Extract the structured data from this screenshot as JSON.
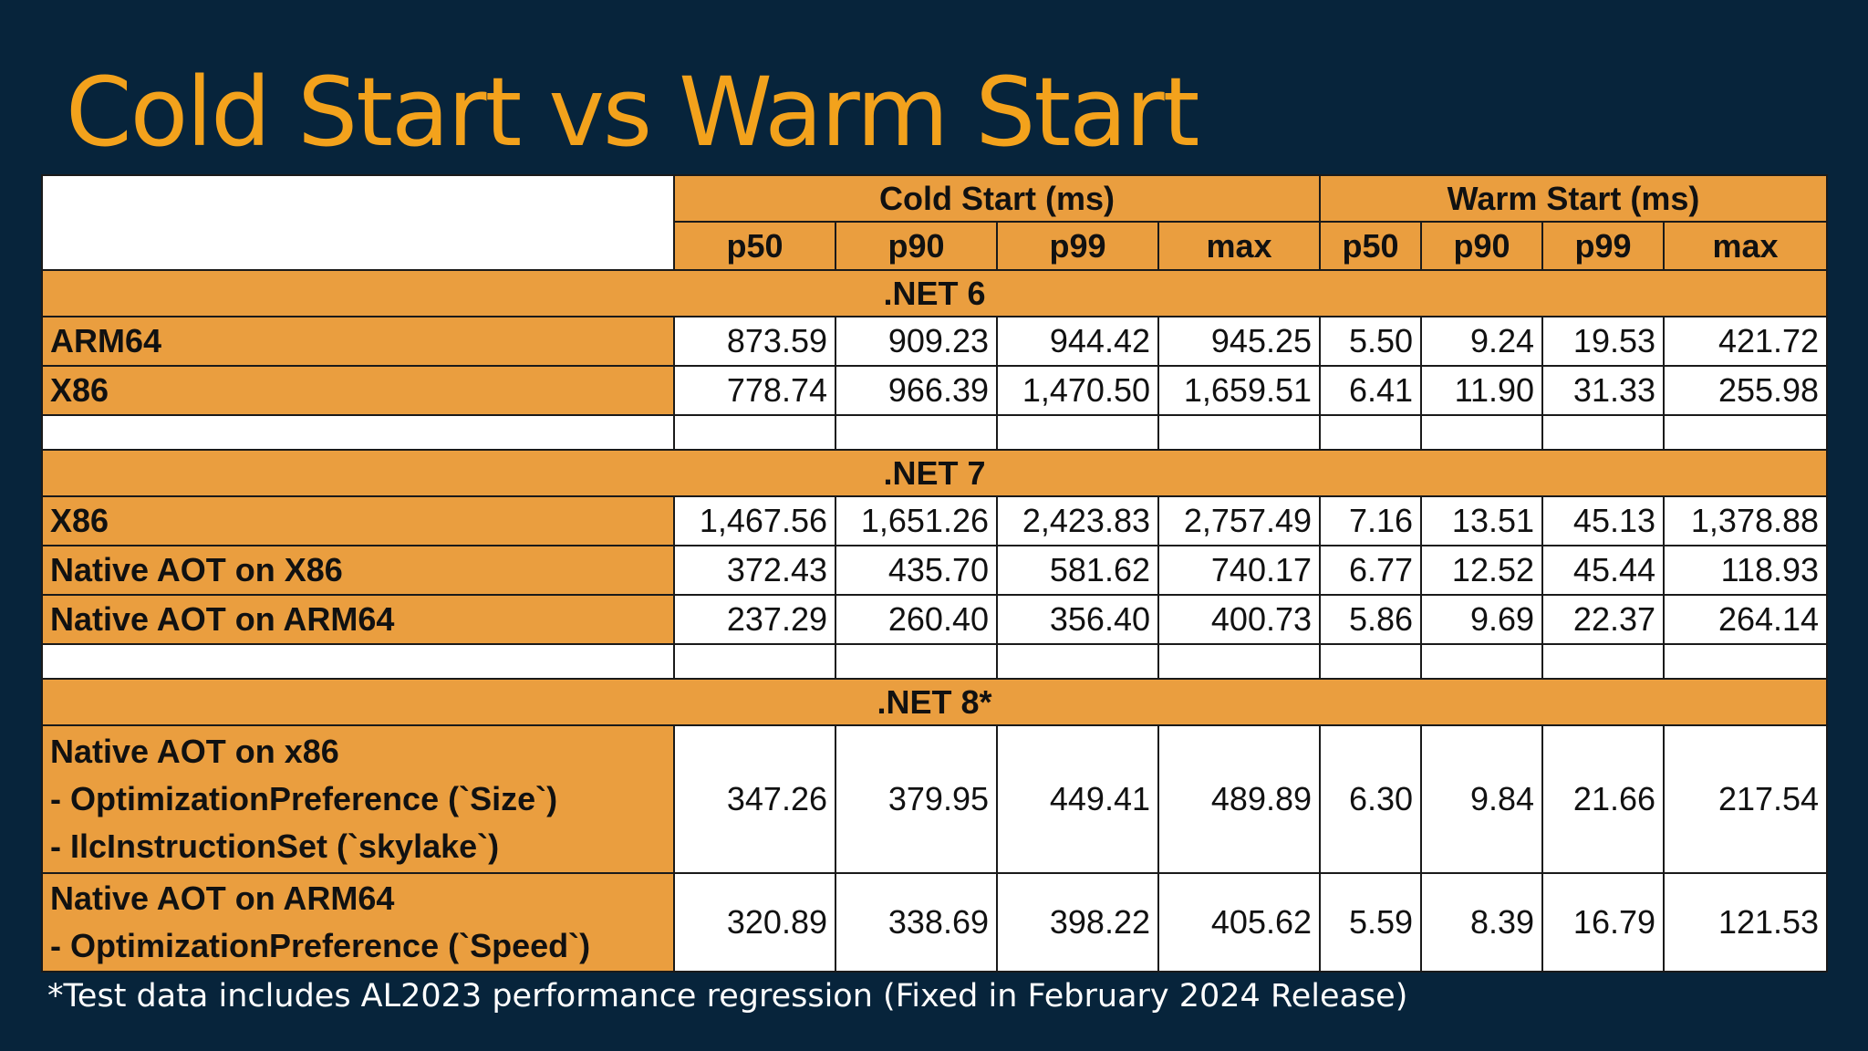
{
  "title": "Cold Start vs Warm Start",
  "table": {
    "group_headers": [
      "Cold Start (ms)",
      "Warm Start (ms)"
    ],
    "column_headers": [
      "p50",
      "p90",
      "p99",
      "max",
      "p50",
      "p90",
      "p99",
      "max"
    ],
    "sections": [
      {
        "name": ".NET 6",
        "rows": [
          {
            "label": [
              "ARM64"
            ],
            "values": [
              "873.59",
              "909.23",
              "944.42",
              "945.25",
              "5.50",
              "9.24",
              "19.53",
              "421.72"
            ]
          },
          {
            "label": [
              "X86"
            ],
            "values": [
              "778.74",
              "966.39",
              "1,470.50",
              "1,659.51",
              "6.41",
              "11.90",
              "31.33",
              "255.98"
            ]
          }
        ]
      },
      {
        "name": ".NET 7",
        "rows": [
          {
            "label": [
              "X86"
            ],
            "values": [
              "1,467.56",
              "1,651.26",
              "2,423.83",
              "2,757.49",
              "7.16",
              "13.51",
              "45.13",
              "1,378.88"
            ]
          },
          {
            "label": [
              "Native AOT on X86"
            ],
            "values": [
              "372.43",
              "435.70",
              "581.62",
              "740.17",
              "6.77",
              "12.52",
              "45.44",
              "118.93"
            ]
          },
          {
            "label": [
              "Native AOT on ARM64"
            ],
            "values": [
              "237.29",
              "260.40",
              "356.40",
              "400.73",
              "5.86",
              "9.69",
              "22.37",
              "264.14"
            ]
          }
        ]
      },
      {
        "name": ".NET 8*",
        "rows": [
          {
            "label": [
              "Native AOT on x86",
              "- OptimizationPreference (`Size`)",
              "- IlcInstructionSet (`skylake`)"
            ],
            "values": [
              "347.26",
              "379.95",
              "449.41",
              "489.89",
              "6.30",
              "9.84",
              "21.66",
              "217.54"
            ]
          },
          {
            "label": [
              "Native AOT on ARM64",
              "- OptimizationPreference (`Speed`)"
            ],
            "values": [
              "320.89",
              "338.69",
              "398.22",
              "405.62",
              "5.59",
              "8.39",
              "16.79",
              "121.53"
            ]
          }
        ]
      }
    ]
  },
  "footnote": "*Test data includes AL2023 performance regression (Fixed in February 2024 Release)",
  "colors": {
    "background": "#07243b",
    "title": "#f3a21c",
    "header_fill": "#ea9e3f",
    "cell_fill": "#ffffff"
  }
}
